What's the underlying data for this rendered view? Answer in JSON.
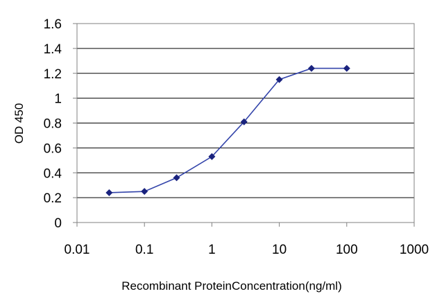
{
  "chart_data": {
    "type": "line",
    "title": "",
    "xlabel": "Recombinant ProteinConcentration(ng/ml)",
    "ylabel": "OD 450",
    "x_scale": "log",
    "xlim": [
      0.01,
      1000
    ],
    "ylim": [
      0,
      1.6
    ],
    "x_ticks": [
      "0.01",
      "0.1",
      "1",
      "10",
      "100",
      "1000"
    ],
    "y_ticks": [
      "0",
      "0.2",
      "0.4",
      "0.6",
      "0.8",
      "1",
      "1.2",
      "1.4",
      "1.6"
    ],
    "grid": "horizontal",
    "legend": "none",
    "series": [
      {
        "x": [
          0.03,
          0.1,
          0.3,
          1,
          3,
          10,
          30,
          100
        ],
        "y": [
          0.24,
          0.25,
          0.36,
          0.53,
          0.81,
          1.15,
          1.24,
          1.24
        ]
      }
    ],
    "colors": {
      "line": "#3344aa",
      "marker": "#1a237e",
      "grid": "#000000",
      "frame": "#808080"
    }
  }
}
